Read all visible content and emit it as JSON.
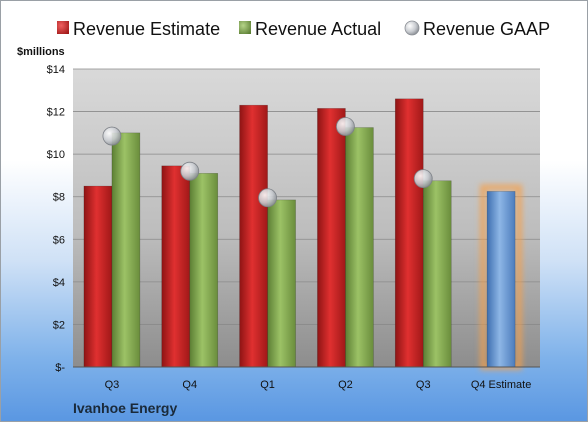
{
  "chart_data": {
    "type": "bar",
    "unit_label": "$millions",
    "company": "Ivanhoe Energy",
    "categories": [
      "Q3",
      "Q4",
      "Q1",
      "Q2",
      "Q3",
      "Q4 Estimate"
    ],
    "y_ticks": [
      "$-",
      "$2",
      "$4",
      "$6",
      "$8",
      "$10",
      "$12",
      "$14"
    ],
    "ylim": [
      0,
      14
    ],
    "grid": true,
    "legend_position": "top",
    "series": [
      {
        "name": "Revenue Estimate",
        "type": "bar",
        "color": "#d42a2a",
        "values": [
          8.5,
          9.45,
          12.3,
          12.15,
          12.6,
          null
        ]
      },
      {
        "name": "Revenue Actual",
        "type": "bar",
        "color": "#8fb35a",
        "values": [
          11.0,
          9.1,
          7.85,
          11.25,
          8.75,
          null
        ]
      },
      {
        "name": "Revenue GAAP",
        "type": "marker",
        "color": "#c8cbd0",
        "values": [
          10.85,
          9.2,
          7.95,
          11.3,
          8.85,
          null
        ]
      }
    ],
    "estimate_bar": {
      "category": "Q4 Estimate",
      "value": 8.25,
      "color": "#6f9fd8",
      "glow": "#f5a04a"
    }
  }
}
